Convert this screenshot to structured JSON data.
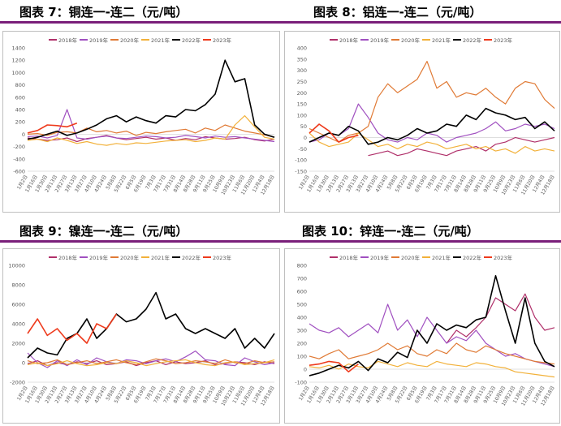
{
  "titles": {
    "c7": "图表 7：铜连一-连二（元/吨）",
    "c8": "图表 8：铝连一-连二（元/吨）",
    "c9": "图表 9：镍连一-连二（元/吨）",
    "c10": "图表 10：锌连一-连二（元/吨）"
  },
  "colors": {
    "2018": "#b0306a",
    "2019": "#a050c0",
    "2020": "#e07a35",
    "2021": "#f2b13a",
    "2022": "#000000",
    "2023": "#ee3a1c",
    "rule": "#7a1f7a"
  },
  "chart_data": [
    {
      "id": "c7",
      "type": "line",
      "legend": [
        "2018年",
        "2019年",
        "2020年",
        "2021年",
        "2022年",
        "2023年"
      ],
      "ylim": [
        -600,
        1400
      ],
      "yticks": [
        "1400",
        "1200",
        "1000",
        "800",
        "600",
        "400",
        "200",
        "0",
        "-200",
        "-400",
        "-600"
      ],
      "xticks": [
        "1月2日",
        "1月16日",
        "1月30日",
        "2月13日",
        "2月27日",
        "3月13日",
        "3月27日",
        "4月10日",
        "4月24日",
        "5月8日",
        "5月22日",
        "6月5日",
        "6月19日",
        "7月3日",
        "7月17日",
        "7月31日",
        "8月14日",
        "8月28日",
        "9月11日",
        "9月25日",
        "10月9日",
        "10月23日",
        "11月6日",
        "11月20日",
        "12月4日",
        "12月18日"
      ],
      "series": [
        {
          "name": "2018年",
          "y": [
            -60,
            -80,
            -100,
            -90,
            -60,
            -120,
            -70,
            -50,
            -20,
            -60,
            -90,
            -70,
            -50,
            -80,
            -60,
            -100,
            -70,
            -90,
            -40,
            -60,
            -80,
            -70,
            -50,
            -90,
            -110,
            -80
          ]
        },
        {
          "name": "2019年",
          "y": [
            -40,
            -30,
            -60,
            -20,
            400,
            -60,
            -80,
            -50,
            -30,
            -60,
            -70,
            -50,
            -30,
            -40,
            -60,
            -50,
            -20,
            -40,
            -60,
            -30,
            -50,
            -40,
            -60,
            -80,
            -100,
            -120
          ]
        },
        {
          "name": "2020年",
          "y": [
            0,
            10,
            -20,
            30,
            40,
            20,
            100,
            40,
            60,
            20,
            50,
            -20,
            30,
            10,
            40,
            60,
            80,
            20,
            100,
            60,
            150,
            100,
            50,
            20,
            -10,
            -50
          ]
        },
        {
          "name": "2021年",
          "y": [
            -100,
            -80,
            -120,
            -60,
            -100,
            -150,
            -120,
            -160,
            -180,
            -150,
            -170,
            -140,
            -150,
            -130,
            -110,
            -100,
            -90,
            -120,
            -100,
            -60,
            -80,
            150,
            300,
            120,
            -50,
            -80
          ]
        },
        {
          "name": "2022年",
          "y": [
            -80,
            -50,
            0,
            50,
            -20,
            20,
            80,
            150,
            250,
            300,
            200,
            280,
            220,
            180,
            300,
            280,
            400,
            380,
            480,
            650,
            1200,
            850,
            900,
            150,
            0,
            -50
          ]
        },
        {
          "name": "2023年",
          "y": [
            20,
            60,
            150,
            140,
            120,
            180
          ]
        }
      ]
    },
    {
      "id": "c8",
      "type": "line",
      "legend": [
        "2018年",
        "2019年",
        "2020年",
        "2021年",
        "2022年",
        "2023年"
      ],
      "ylim": [
        -150,
        400
      ],
      "yticks": [
        "400",
        "350",
        "300",
        "250",
        "200",
        "150",
        "100",
        "50",
        "0",
        "-50",
        "-100",
        "-150"
      ],
      "xticks": [
        "1月2日",
        "1月16日",
        "1月30日",
        "2月13日",
        "2月27日",
        "3月13日",
        "3月27日",
        "4月10日",
        "4月24日",
        "5月8日",
        "5月22日",
        "6月5日",
        "6月19日",
        "7月3日",
        "7月17日",
        "7月31日",
        "8月14日",
        "8月28日",
        "9月11日",
        "9月25日",
        "10月9日",
        "10月23日",
        "11月6日",
        "11月20日",
        "12月4日",
        "12月18日"
      ],
      "series": [
        {
          "name": "2018年",
          "y": [
            null,
            null,
            null,
            null,
            null,
            null,
            -80,
            -70,
            -60,
            -80,
            -70,
            -50,
            -60,
            -70,
            -80,
            -60,
            -50,
            -40,
            -60,
            -30,
            -20,
            0,
            -10,
            -20,
            -10,
            0
          ]
        },
        {
          "name": "2019年",
          "y": [
            -20,
            -10,
            20,
            10,
            40,
            150,
            90,
            20,
            -10,
            -20,
            0,
            -10,
            20,
            10,
            -20,
            0,
            10,
            20,
            40,
            70,
            30,
            40,
            60,
            50,
            60,
            40
          ]
        },
        {
          "name": "2020年",
          "y": [
            40,
            20,
            0,
            -20,
            10,
            20,
            50,
            180,
            240,
            200,
            230,
            260,
            340,
            220,
            250,
            180,
            200,
            190,
            220,
            180,
            150,
            220,
            250,
            240,
            170,
            130
          ]
        },
        {
          "name": "2021年",
          "y": [
            20,
            -20,
            -40,
            -30,
            -20,
            20,
            -10,
            -40,
            -30,
            -50,
            -30,
            -40,
            -20,
            -30,
            -50,
            -40,
            -30,
            -50,
            -40,
            -60,
            -50,
            -70,
            -40,
            -60,
            -50,
            -60
          ]
        },
        {
          "name": "2022年",
          "y": [
            -20,
            0,
            20,
            10,
            50,
            30,
            -30,
            -20,
            0,
            -10,
            10,
            40,
            20,
            30,
            60,
            50,
            100,
            80,
            130,
            110,
            100,
            80,
            90,
            40,
            70,
            30
          ]
        },
        {
          "name": "2023年",
          "y": [
            20,
            60,
            30,
            -20,
            0,
            10
          ]
        }
      ]
    },
    {
      "id": "c9",
      "type": "line",
      "legend": [
        "2018年",
        "2019年",
        "2020年",
        "2021年",
        "2022年",
        "2023年"
      ],
      "ylim": [
        -2000,
        10000
      ],
      "yticks": [
        "10000",
        "8000",
        "6000",
        "4000",
        "2000",
        "0",
        "-2000"
      ],
      "xticks": [
        "1月2日",
        "1月16日",
        "1月30日",
        "2月13日",
        "2月27日",
        "3月13日",
        "3月27日",
        "4月10日",
        "4月24日",
        "5月8日",
        "5月22日",
        "6月5日",
        "6月19日",
        "7月3日",
        "7月17日",
        "7月31日",
        "8月14日",
        "8月28日",
        "9月11日",
        "9月25日",
        "10月9日",
        "10月23日",
        "11月6日",
        "11月20日",
        "12月4日",
        "12月18日"
      ],
      "series": [
        {
          "name": "2018年",
          "y": [
            -100,
            200,
            -300,
            0,
            -200,
            100,
            -100,
            200,
            -200,
            -100,
            100,
            -300,
            0,
            200,
            -200,
            100,
            -100,
            0,
            200,
            -200,
            -100,
            100,
            0,
            -200,
            100,
            -100
          ]
        },
        {
          "name": "2019年",
          "y": [
            1000,
            0,
            -500,
            200,
            -300,
            300,
            -200,
            500,
            100,
            -100,
            300,
            200,
            -100,
            200,
            400,
            100,
            600,
            1200,
            300,
            200,
            -200,
            -300,
            500,
            100,
            -200,
            0
          ]
        },
        {
          "name": "2020年",
          "y": [
            200,
            -100,
            0,
            300,
            -200,
            0,
            200,
            -100,
            100,
            300,
            0,
            -200,
            100,
            400,
            200,
            -100,
            0,
            200,
            100,
            -100,
            300,
            0,
            -100,
            200,
            0,
            100
          ]
        },
        {
          "name": "2021年",
          "y": [
            -200,
            0,
            -300,
            -100,
            200,
            -100,
            -300,
            -200,
            0,
            -100,
            200,
            0,
            -300,
            -100,
            100,
            200,
            300,
            0,
            -200,
            -300,
            0,
            100,
            -200,
            -100,
            0,
            300
          ]
        },
        {
          "name": "2022年",
          "y": [
            500,
            1500,
            1000,
            800,
            2500,
            3000,
            4500,
            2500,
            3500,
            5000,
            4200,
            4500,
            5500,
            7200,
            4500,
            5000,
            3500,
            3000,
            3500,
            3000,
            2500,
            3500,
            1500,
            2500,
            1500,
            3000
          ]
        },
        {
          "name": "2023年",
          "y": [
            3000,
            4500,
            2800,
            3500,
            2300,
            3000,
            2000,
            4000,
            3500,
            5000
          ]
        }
      ]
    },
    {
      "id": "c10",
      "type": "line",
      "legend": [
        "2018年",
        "2019年",
        "2020年",
        "2021年",
        "2022年",
        "2023年"
      ],
      "ylim": [
        -100,
        800
      ],
      "yticks": [
        "800",
        "700",
        "600",
        "500",
        "400",
        "300",
        "200",
        "100",
        "0",
        "-100"
      ],
      "xticks": [
        "1月2日",
        "1月16日",
        "1月30日",
        "2月13日",
        "2月27日",
        "3月13日",
        "3月27日",
        "4月10日",
        "4月24日",
        "5月8日",
        "5月22日",
        "6月5日",
        "6月19日",
        "7月3日",
        "7月17日",
        "7月31日",
        "8月14日",
        "8月28日",
        "9月11日",
        "9月25日",
        "10月9日",
        "10月23日",
        "11月6日",
        "11月20日",
        "12月4日",
        "12月18日"
      ],
      "series": [
        {
          "name": "2018年",
          "y": [
            null,
            null,
            null,
            null,
            null,
            null,
            null,
            null,
            null,
            null,
            null,
            null,
            null,
            null,
            200,
            300,
            250,
            320,
            400,
            550,
            500,
            450,
            580,
            400,
            300,
            320
          ]
        },
        {
          "name": "2019年",
          "y": [
            350,
            300,
            280,
            320,
            250,
            300,
            350,
            280,
            500,
            300,
            380,
            250,
            400,
            300,
            200,
            250,
            220,
            300,
            200,
            150,
            100,
            120,
            80,
            60,
            40,
            20
          ]
        },
        {
          "name": "2020年",
          "y": [
            100,
            80,
            120,
            150,
            80,
            100,
            120,
            150,
            200,
            150,
            180,
            120,
            100,
            150,
            120,
            200,
            150,
            130,
            180,
            150,
            120,
            100,
            80,
            60,
            50,
            40
          ]
        },
        {
          "name": "2021年",
          "y": [
            20,
            10,
            30,
            0,
            40,
            20,
            10,
            60,
            40,
            20,
            50,
            30,
            20,
            60,
            40,
            30,
            20,
            50,
            40,
            20,
            10,
            -20,
            -30,
            -40,
            -50,
            -60
          ]
        },
        {
          "name": "2022年",
          "y": [
            -50,
            -30,
            0,
            30,
            10,
            60,
            -10,
            80,
            50,
            130,
            90,
            300,
            200,
            350,
            300,
            340,
            320,
            380,
            400,
            720,
            450,
            200,
            550,
            200,
            60,
            20
          ]
        },
        {
          "name": "2023年",
          "y": [
            30,
            40,
            60,
            50,
            -20,
            40
          ]
        }
      ]
    }
  ]
}
